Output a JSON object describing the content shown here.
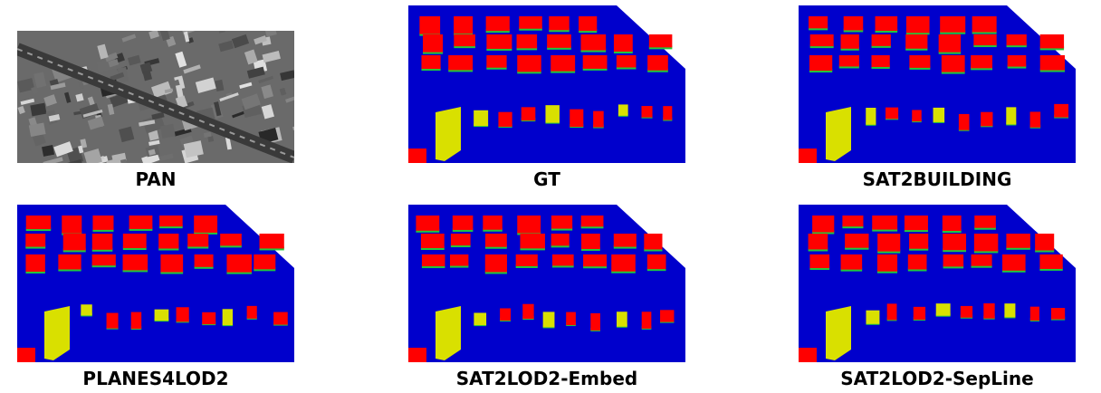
{
  "panels": [
    {
      "caption": "PAN"
    },
    {
      "caption": "GT"
    },
    {
      "caption": "SAT2BUILDING"
    },
    {
      "caption": "PLANES4LOD2"
    },
    {
      "caption": "SAT2LOD2-Embed"
    },
    {
      "caption": "SAT2LOD2-SepLine"
    }
  ],
  "colors": {
    "ground": "#0000cc",
    "roof_high": "#ff0000",
    "wall_green": "#22c83c",
    "height_mid": "#d9e000",
    "pan_background": "#707070"
  },
  "legend_icons": [
    "pan-satellite-image",
    "3d-building-render"
  ]
}
